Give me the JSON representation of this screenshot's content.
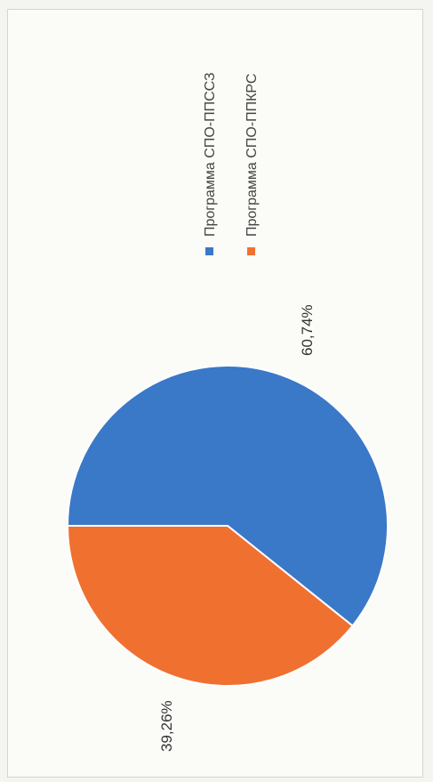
{
  "chart_data": {
    "type": "pie",
    "title": "",
    "categories": [
      "Программа СПО-ППССЗ",
      "Программа СПО-ППКРС"
    ],
    "values": [
      60.74,
      39.26
    ],
    "labels": [
      "60,74%",
      "39,26%"
    ],
    "colors": [
      "#3a78c8",
      "#f07030"
    ],
    "legend_position": "right",
    "orientation": "rotated-90-clockwise"
  }
}
